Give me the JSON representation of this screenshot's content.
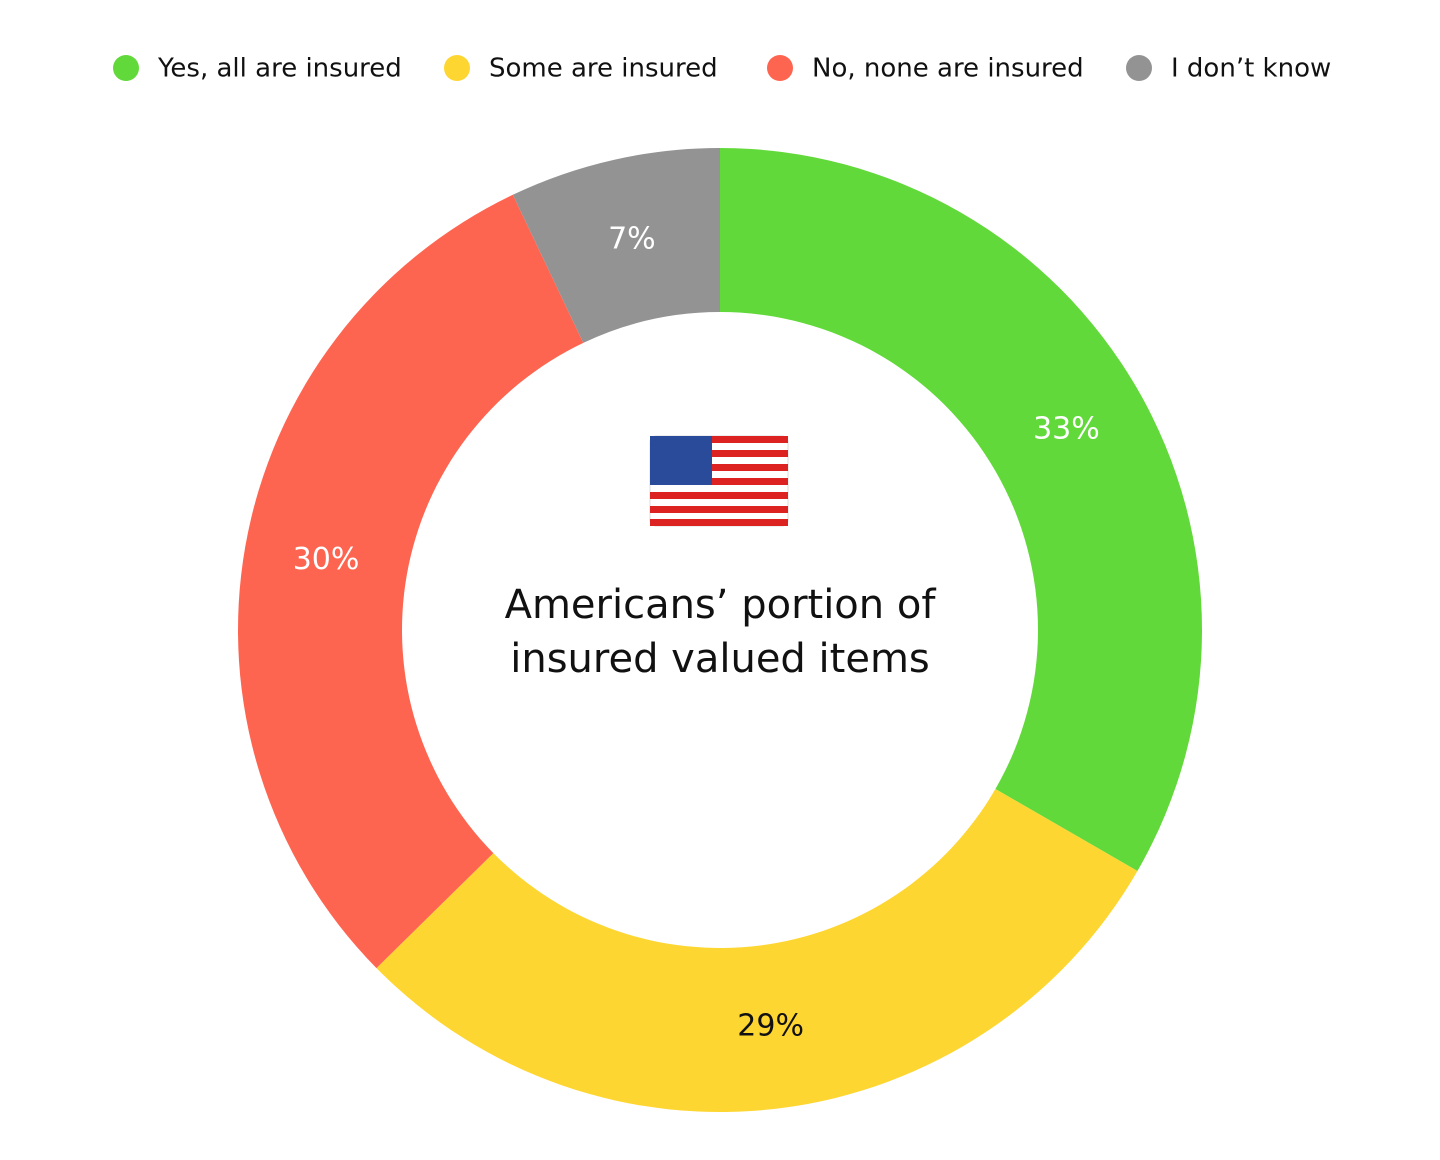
{
  "chart_data": {
    "type": "donut",
    "title": "Americans’ portion of insured valued items",
    "categories": [
      "Yes, all are insured",
      "Some are insured",
      "No, none are insured",
      "I don’t know"
    ],
    "values": [
      33,
      29,
      30,
      7
    ],
    "value_labels": [
      "33%",
      "29%",
      "30%",
      "7%"
    ],
    "colors": [
      "#62d93a",
      "#fed631",
      "#fe6551",
      "#939393"
    ],
    "legend": "top"
  }
}
